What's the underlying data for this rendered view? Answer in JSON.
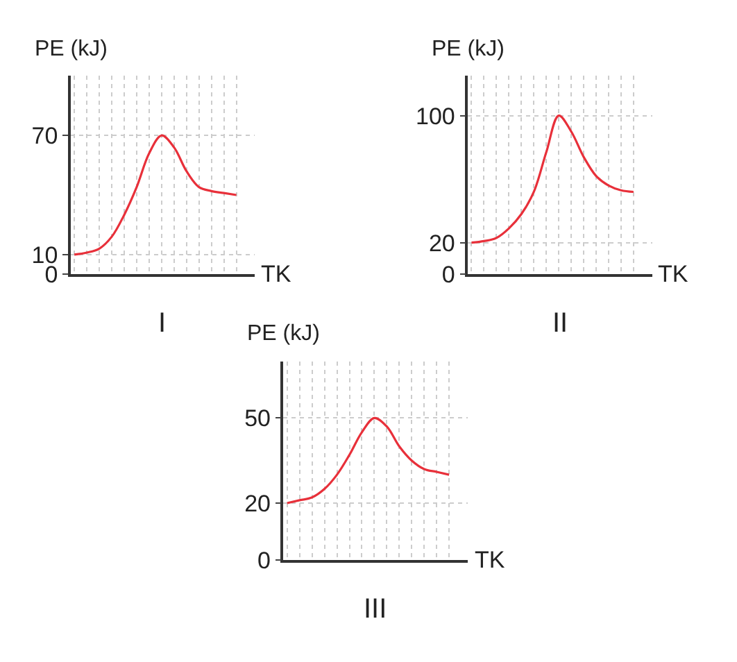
{
  "chart_data": [
    {
      "type": "line",
      "title": "I",
      "xlabel": "TK",
      "ylabel": "PE (kJ)",
      "categories": [
        null,
        null,
        null,
        null,
        null,
        null,
        null,
        null,
        null,
        null,
        null,
        null,
        null,
        null
      ],
      "series": [
        {
          "color": "#e8303a",
          "values": [
            10,
            11,
            13,
            19,
            30,
            44,
            61,
            70,
            64,
            52,
            44,
            42,
            41,
            40
          ]
        }
      ],
      "ylim": [
        0,
        100
      ],
      "yticks": [
        0,
        10,
        70
      ],
      "grid": true,
      "marker": "none",
      "line_style": "solid"
    },
    {
      "type": "line",
      "title": "II",
      "xlabel": "TK",
      "ylabel": "PE (kJ)",
      "categories": [
        null,
        null,
        null,
        null,
        null,
        null,
        null,
        null,
        null,
        null,
        null,
        null,
        null,
        null
      ],
      "series": [
        {
          "color": "#e8303a",
          "values": [
            20,
            21,
            23,
            29,
            38,
            52,
            77,
            100,
            90,
            74,
            62,
            56,
            53,
            52
          ]
        }
      ],
      "ylim": [
        0,
        125
      ],
      "yticks": [
        0,
        20,
        100
      ],
      "grid": true,
      "marker": "none",
      "line_style": "solid"
    },
    {
      "type": "line",
      "title": "III",
      "xlabel": "TK",
      "ylabel": "PE (kJ)",
      "categories": [
        null,
        null,
        null,
        null,
        null,
        null,
        null,
        null,
        null,
        null,
        null,
        null,
        null,
        null
      ],
      "series": [
        {
          "color": "#e8303a",
          "values": [
            20,
            21,
            22,
            25,
            30,
            37,
            45,
            50,
            47,
            40,
            35,
            32,
            31,
            30
          ]
        }
      ],
      "ylim": [
        0,
        70
      ],
      "yticks": [
        0,
        20,
        50
      ],
      "grid": true,
      "marker": "none",
      "line_style": "solid"
    }
  ]
}
